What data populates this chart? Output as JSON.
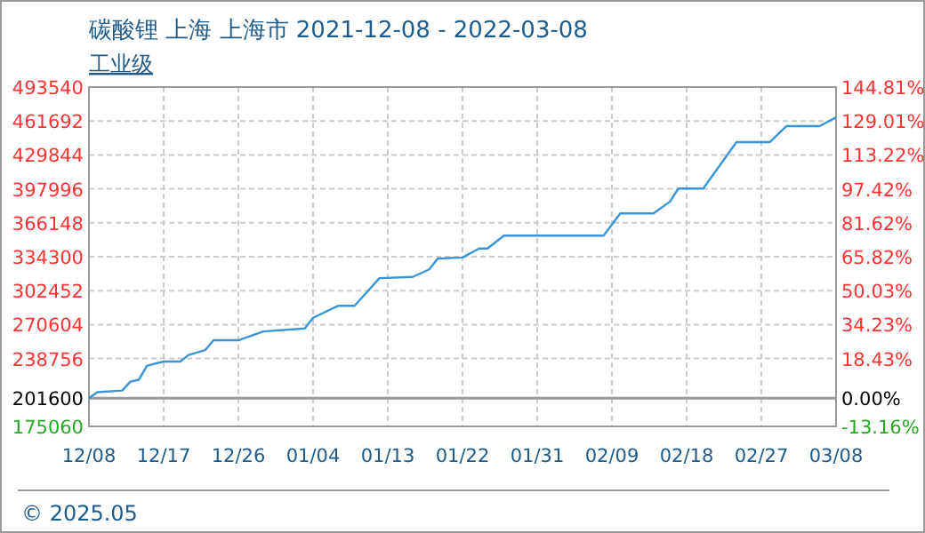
{
  "chart_data": {
    "type": "line",
    "title": "碳酸锂 上海 上海市 2021-12-08 - 2022-03-08",
    "subtitle": "工业级",
    "x": [
      "2021-12-08",
      "2021-12-09",
      "2021-12-12",
      "2021-12-13",
      "2021-12-14",
      "2021-12-15",
      "2021-12-17",
      "2021-12-19",
      "2021-12-20",
      "2021-12-22",
      "2021-12-23",
      "2021-12-26",
      "2021-12-29",
      "2022-01-03",
      "2022-01-04",
      "2022-01-07",
      "2022-01-09",
      "2022-01-12",
      "2022-01-16",
      "2022-01-18",
      "2022-01-19",
      "2022-01-22",
      "2022-01-24",
      "2022-01-25",
      "2022-01-27",
      "2022-02-08",
      "2022-02-10",
      "2022-02-14",
      "2022-02-16",
      "2022-02-17",
      "2022-02-20",
      "2022-02-24",
      "2022-02-28",
      "2022-03-02",
      "2022-03-06",
      "2022-03-08"
    ],
    "series": [
      {
        "color": "#3a95d6",
        "values": [
          201600,
          207100,
          208700,
          217100,
          218800,
          232100,
          235900,
          235900,
          242100,
          246600,
          255900,
          255900,
          264200,
          267000,
          277000,
          288200,
          288200,
          314200,
          315300,
          322400,
          332500,
          333600,
          342000,
          342000,
          354100,
          354100,
          375000,
          375000,
          386100,
          398300,
          398300,
          441800,
          441800,
          456800,
          456800,
          465100
        ]
      }
    ],
    "xlim": [
      "2021-12-08",
      "2022-03-08"
    ],
    "xticks": [
      {
        "value": "2021-12-08",
        "label": "12/08"
      },
      {
        "value": "2021-12-17",
        "label": "12/17"
      },
      {
        "value": "2021-12-26",
        "label": "12/26"
      },
      {
        "value": "2022-01-04",
        "label": "01/04"
      },
      {
        "value": "2022-01-13",
        "label": "01/13"
      },
      {
        "value": "2022-01-22",
        "label": "01/22"
      },
      {
        "value": "2022-01-31",
        "label": "01/31"
      },
      {
        "value": "2022-02-09",
        "label": "02/09"
      },
      {
        "value": "2022-02-18",
        "label": "02/18"
      },
      {
        "value": "2022-02-27",
        "label": "02/27"
      },
      {
        "value": "2022-03-08",
        "label": "03/08"
      }
    ],
    "ylim": [
      175060,
      493540
    ],
    "yticks": [
      175060,
      201600,
      238756,
      270604,
      302452,
      334300,
      366148,
      397996,
      429844,
      461692,
      493540
    ],
    "y2lim": [
      -13.16,
      144.81
    ],
    "y2ticks": [
      {
        "value": -13.16,
        "label": "-13.16%"
      },
      {
        "value": 0,
        "label": "0.00%"
      },
      {
        "value": 18.43,
        "label": "18.43%"
      },
      {
        "value": 34.23,
        "label": "34.23%"
      },
      {
        "value": 50.03,
        "label": "50.03%"
      },
      {
        "value": 65.82,
        "label": "65.82%"
      },
      {
        "value": 81.62,
        "label": "81.62%"
      },
      {
        "value": 97.42,
        "label": "97.42%"
      },
      {
        "value": 113.22,
        "label": "113.22%"
      },
      {
        "value": 129.01,
        "label": "129.01%"
      },
      {
        "value": 144.81,
        "label": "144.81%"
      }
    ],
    "ref_lines": [
      {
        "axis": "y",
        "value": 201600,
        "color": "#999999"
      }
    ],
    "grid": true,
    "line_style": "solid",
    "marker": "none",
    "annotations": [
      "© 2025.05"
    ]
  }
}
